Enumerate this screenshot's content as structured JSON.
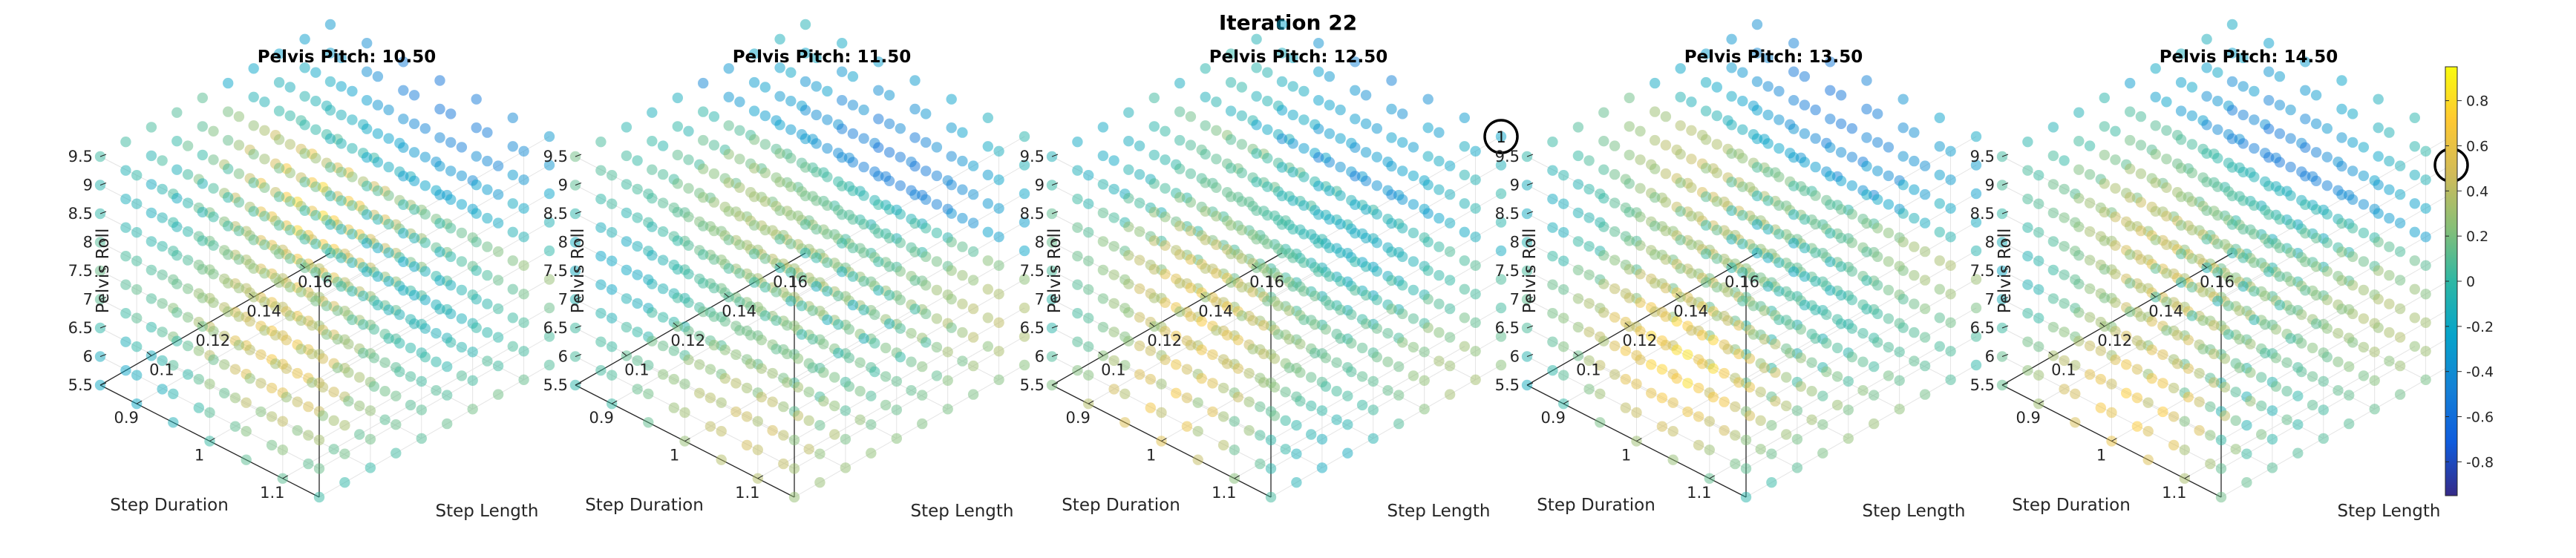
{
  "chart_data": {
    "type": "scatter",
    "title": "Iteration 22",
    "colormap": "parula",
    "colorbar": {
      "ticks": [
        "0.8",
        "0.6",
        "0.4",
        "0.2",
        "0",
        "-0.2",
        "-0.4",
        "-0.6",
        "-0.8"
      ],
      "range": [
        -0.95,
        0.95
      ]
    },
    "axes": {
      "x": {
        "label": "Step Length",
        "ticks": [
          "0.1",
          "0.12",
          "0.14",
          "0.16"
        ],
        "range": [
          0.08,
          0.17
        ]
      },
      "y": {
        "label": "Step Duration",
        "ticks": [
          "0.9",
          "1",
          "1.1"
        ],
        "range": [
          0.85,
          1.15
        ]
      },
      "z": {
        "label": "Pelvis Roll",
        "ticks": [
          "5.5",
          "6",
          "6.5",
          "7",
          "7.5",
          "8",
          "8.5",
          "9",
          "9.5"
        ],
        "range": [
          5.5,
          9.5
        ]
      }
    },
    "grid_points": {
      "step_length": [
        0.08,
        0.09,
        0.1,
        0.11,
        0.12,
        0.13,
        0.14,
        0.15,
        0.16,
        0.17
      ],
      "step_duration": [
        0.85,
        0.9,
        0.95,
        1.0,
        1.05,
        1.1,
        1.15
      ],
      "pelvis_roll": [
        5.5,
        6.0,
        6.5,
        7.0,
        7.5,
        8.0,
        8.5,
        9.0,
        9.5
      ]
    },
    "panels": [
      {
        "title": "Pelvis Pitch: 10.50",
        "pelvis_pitch": 10.5,
        "hotspot": {
          "step_length": 0.1,
          "step_duration": 1.05,
          "pelvis_roll": 8.5,
          "value": 0.6
        }
      },
      {
        "title": "Pelvis Pitch: 11.50",
        "pelvis_pitch": 11.5,
        "hotspot": {
          "step_length": 0.12,
          "step_duration": 1.1,
          "pelvis_roll": 6.0,
          "value": 0.4
        }
      },
      {
        "title": "Pelvis Pitch: 12.50",
        "pelvis_pitch": 12.5,
        "hotspot": {
          "step_length": 0.1,
          "step_duration": 0.95,
          "pelvis_roll": 5.5,
          "value": 0.6
        },
        "marker": {
          "label": "1",
          "step_length": 0.17,
          "step_duration": 1.15,
          "pelvis_roll": 9.5
        }
      },
      {
        "title": "Pelvis Pitch: 13.50",
        "pelvis_pitch": 13.5,
        "hotspot": {
          "step_length": 0.11,
          "step_duration": 1.0,
          "pelvis_roll": 6.5,
          "value": 0.6
        }
      },
      {
        "title": "Pelvis Pitch: 14.50",
        "pelvis_pitch": 14.5,
        "hotspot": {
          "step_length": 0.11,
          "step_duration": 1.0,
          "pelvis_roll": 6.0,
          "value": 0.6
        },
        "marker": {
          "label": "1",
          "step_length": 0.17,
          "step_duration": 1.15,
          "pelvis_roll": 9.0
        }
      }
    ],
    "grid": true,
    "legend": "none"
  }
}
